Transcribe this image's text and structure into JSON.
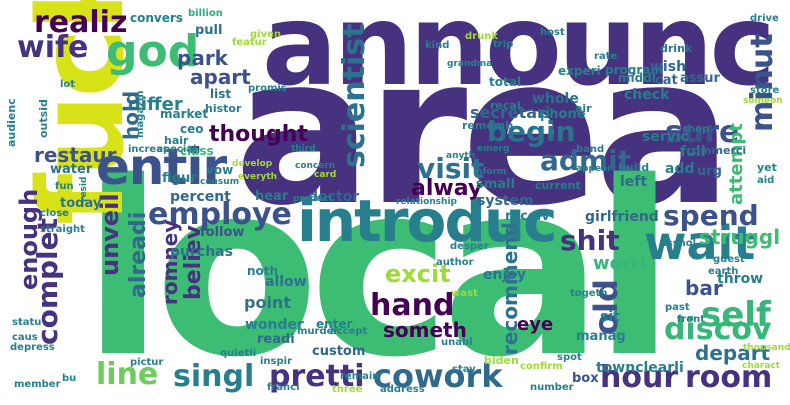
{
  "palette": {
    "dark_purple": "#440154",
    "indigo": "#46327e",
    "blue": "#365c8d",
    "teal_blue": "#277f8e",
    "teal": "#1fa187",
    "green": "#4ac16d",
    "lime": "#a0da39",
    "yellow": "#fde725"
  },
  "words": {
    "area": "area",
    "local": "local",
    "announc": "announc",
    "fuck": "fuck",
    "introduc": "introduc",
    "entir": "entir",
    "god": "god",
    "wait": "wait",
    "cowork": "cowork",
    "self": "self",
    "hour": "hour",
    "pretti": "pretti",
    "singl": "singl",
    "room": "room",
    "line": "line",
    "hand": "hand",
    "discov": "discov",
    "spend": "spend",
    "visit": "visit",
    "admit": "admit",
    "employe": "employe",
    "begin": "begin",
    "sure": "sure",
    "minut": "minut",
    "scientist": "scientist",
    "realiz": "realiz",
    "wife": "wife",
    "park": "park",
    "apart": "apart",
    "differ": "differ",
    "conversat": "convers",
    "billion": "billion",
    "pull": "pull",
    "list": "list",
    "histor": "histor",
    "thought": "thought",
    "hold": "hold",
    "restaur": "restaur",
    "alway": "alway",
    "shit": "shit",
    "struggl": "struggl",
    "worri": "worri",
    "bar": "bar",
    "throw": "throw",
    "old": "old",
    "depart": "depart",
    "excit": "excit",
    "enjoy": "enjoy",
    "someth": "someth",
    "eye": "eye",
    "recommend": "recommend",
    "enough": "enough",
    "unveil": "unveil",
    "alreadi": "alreadi",
    "complet": "complet",
    "romney": "romney",
    "believ": "believ",
    "attempt": "attempt",
    "secretari": "secretari",
    "whole": "whole",
    "check": "check",
    "servic": "servic",
    "full": "full",
    "add": "add",
    "left": "left",
    "small": "small",
    "system": "system",
    "receiv": "receiv",
    "girlfriend": "girlfriend",
    "townclearli": "townclearli",
    "box": "box",
    "sit": "sit",
    "manag": "manag",
    "biden": "biden",
    "confirm": "confirm",
    "point": "point",
    "allow": "allow",
    "noth": "noth",
    "wonder": "wonder",
    "readi": "readi",
    "enter": "enter",
    "custom": "custom",
    "doctor": "doctor",
    "hear": "hear",
    "percent": "percent",
    "follow": "follow",
    "purchas": "purchas",
    "today": "today",
    "water": "water",
    "figur": "figur",
    "vow": "vow",
    "class": "class",
    "ceo": "ceo",
    "market": "market",
    "audienc": "audienc",
    "outsid": "outsid",
    "increas": "increas",
    "magazin": "magazin",
    "special": "special",
    "hair": "hair",
    "featur": "featur",
    "given": "given",
    "experi": "experi",
    "program": "program",
    "wish": "wish",
    "assur": "assur",
    "middl": "middl",
    "total": "total",
    "rememb": "rememb",
    "recal": "recal",
    "phone": "phone",
    "air": "air",
    "cat": "cat",
    "drink": "drink",
    "kind": "kind",
    "trip": "trip",
    "drunk": "drunk",
    "host": "host",
    "rate": "rate",
    "drive": "drive",
    "store": "store",
    "someon": "someon",
    "shop": "shop",
    "commerci": "commerci",
    "yet": "yet",
    "aid": "aid",
    "urg": "urg",
    "band": "band",
    "anyth": "anyth",
    "emerg": "emerg",
    "current": "current",
    "inform": "inform",
    "relationship": "relationship",
    "appear": "appear",
    "build": "build",
    "third": "third",
    "card": "card",
    "product": "product",
    "concern": "concern",
    "everyth": "everyth",
    "develop": "develop",
    "consum": "consum",
    "fun": "fun",
    "close": "close",
    "straight": "straight",
    "resid": "resid",
    "statu": "statu",
    "caus": "caus",
    "depress": "depress",
    "member": "member",
    "bu": "bu",
    "franci": "franci",
    "pictur": "pictur",
    "quietli": "quietli",
    "inspir": "inspir",
    "remain": "remain",
    "three": "three",
    "address": "address",
    "number": "number",
    "stay": "stay",
    "unabl": "unabl",
    "murder": "murder",
    "accept": "accept",
    "desper": "desper",
    "author": "author",
    "wast": "wast",
    "togeth": "togeth",
    "spot": "spot",
    "asshol": "asshol",
    "guest": "guest",
    "earth": "earth",
    "past": "past",
    "front": "front",
    "thousand": "thousand",
    "charact": "charact",
    "promis": "promis",
    "grandma": "grandma",
    "lot": "lot"
  }
}
